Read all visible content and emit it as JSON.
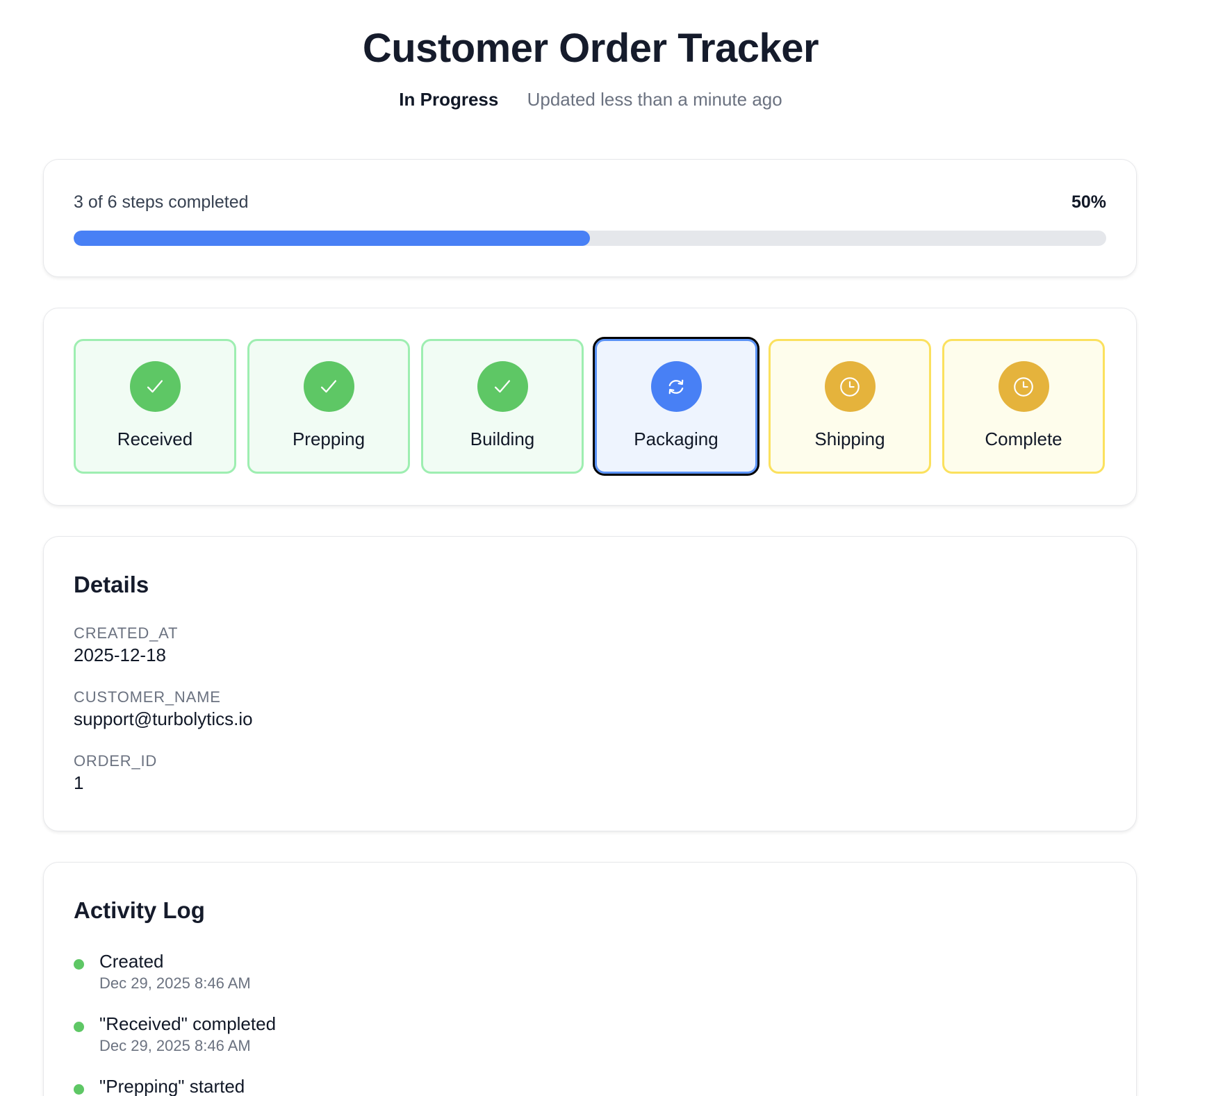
{
  "header": {
    "title": "Customer Order Tracker",
    "status": "In Progress",
    "updated": "Updated less than a minute ago"
  },
  "progress": {
    "label": "3 of 6 steps completed",
    "percent_label": "50%",
    "percent": 50,
    "completed": 3,
    "total": 6,
    "fill_color": "#4880f5"
  },
  "steps": [
    {
      "label": "Received",
      "state": "done",
      "icon": "check-icon"
    },
    {
      "label": "Prepping",
      "state": "done",
      "icon": "check-icon"
    },
    {
      "label": "Building",
      "state": "done",
      "icon": "check-icon"
    },
    {
      "label": "Packaging",
      "state": "active",
      "icon": "refresh-icon"
    },
    {
      "label": "Shipping",
      "state": "pending",
      "icon": "clock-icon"
    },
    {
      "label": "Complete",
      "state": "pending",
      "icon": "clock-icon"
    }
  ],
  "details": {
    "title": "Details",
    "fields": [
      {
        "key": "CREATED_AT",
        "value": "2025-12-18"
      },
      {
        "key": "CUSTOMER_NAME",
        "value": "support@turbolytics.io"
      },
      {
        "key": "ORDER_ID",
        "value": "1"
      }
    ]
  },
  "activity": {
    "title": "Activity Log",
    "items": [
      {
        "text": "Created",
        "time": "Dec 29, 2025 8:46 AM"
      },
      {
        "text": "\"Received\" completed",
        "time": "Dec 29, 2025 8:46 AM"
      },
      {
        "text": "\"Prepping\" started",
        "time": ""
      }
    ]
  },
  "colors": {
    "done": "#5ec765",
    "active": "#4880f5",
    "pending": "#e5b33c"
  }
}
